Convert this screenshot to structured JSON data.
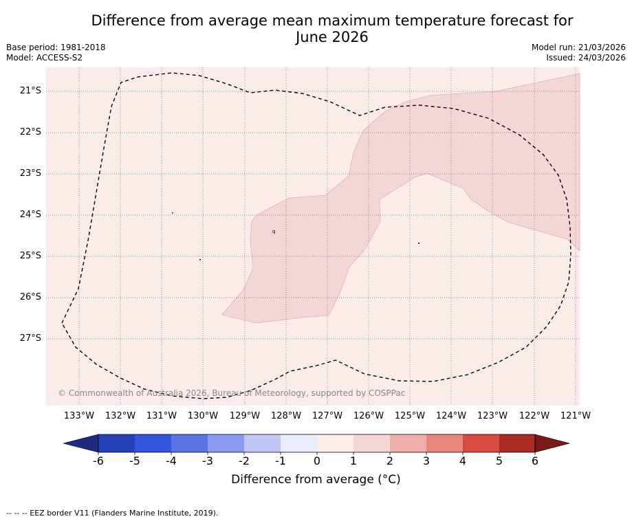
{
  "title": {
    "line1": "Difference from average mean maximum temperature forecast for",
    "line2": "June 2026"
  },
  "meta": {
    "base_period": "Base period: 1981-2018",
    "model": "Model: ACCESS-S2",
    "model_run": "Model run: 21/03/2026",
    "issued": "Issued: 24/03/2026"
  },
  "map": {
    "latitude_labels": [
      "21°S",
      "22°S",
      "23°S",
      "24°S",
      "25°S",
      "26°S",
      "27°S"
    ],
    "longitude_labels": [
      "133°W",
      "132°W",
      "131°W",
      "130°W",
      "129°W",
      "128°W",
      "127°W",
      "126°W",
      "125°W",
      "124°W",
      "123°W",
      "122°W",
      "121°W"
    ],
    "copyright": "© Commonwealth of Australia 2026, Bureau of Meteorology, supported by COSPPac",
    "island_label": "q",
    "colors": {
      "background_fill": "#fbebe9",
      "anomaly_fill": "#f5d6d6",
      "eez_line": "#000000"
    }
  },
  "colorbar": {
    "tick_labels": [
      "-6",
      "-5",
      "-4",
      "-3",
      "-2",
      "-1",
      "0",
      "1",
      "2",
      "3",
      "4",
      "5",
      "6"
    ],
    "colors": [
      "#1d2a80",
      "#2540b8",
      "#3355dd",
      "#5c74e3",
      "#8a9af0",
      "#c0c7f6",
      "#e9ecfc",
      "#fdeeec",
      "#f5d6d6",
      "#eeaea9",
      "#e9867d",
      "#d94b40",
      "#ab2a24",
      "#7a1a18"
    ],
    "title": "Difference from average (°C)"
  },
  "footnote": "--  --  -- EEZ border V11 (Flanders Marine Institute, 2019)."
}
